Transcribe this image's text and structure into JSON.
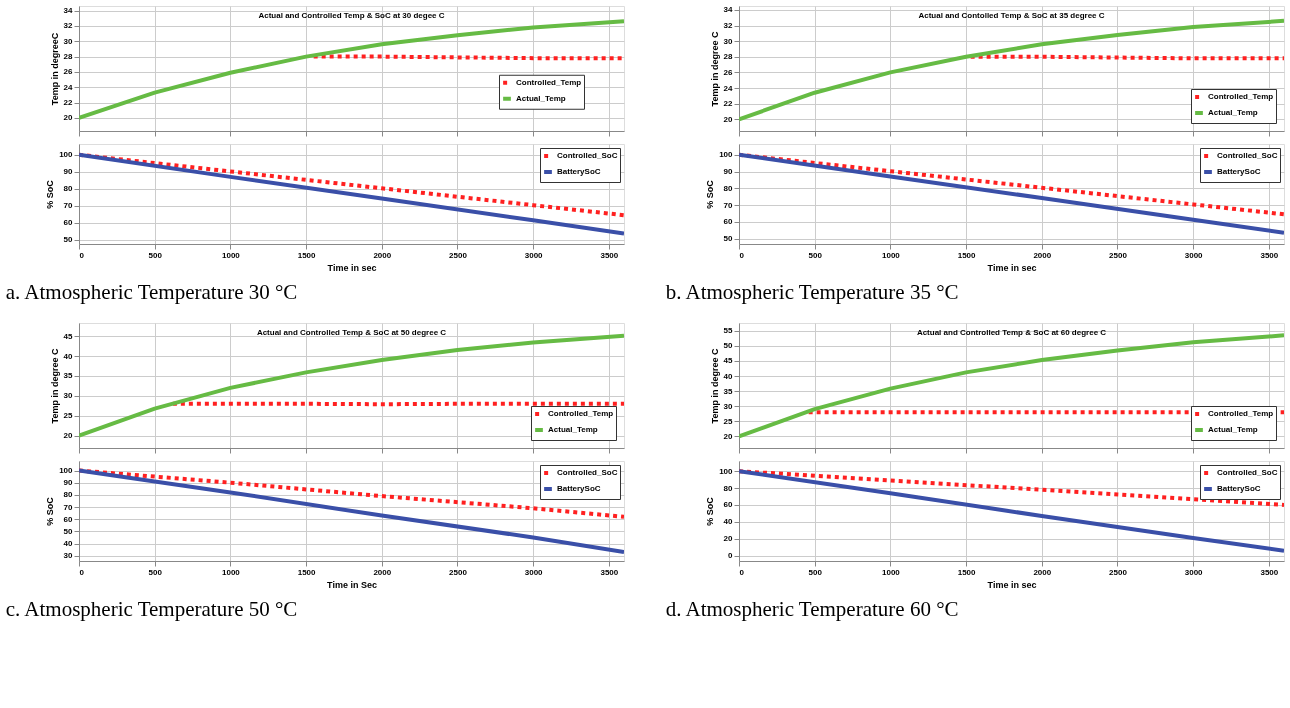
{
  "chart_data": [
    {
      "type": "line",
      "title": "Actual and Controlled Temp & SoC at 30 degee C",
      "ylabel": "Temp in degreeC",
      "xlim": [
        0,
        3600
      ],
      "xticks": [
        0,
        500,
        1000,
        1500,
        2000,
        2500,
        3000,
        3500
      ],
      "ylim": [
        18.3,
        34.6
      ],
      "yticks": [
        20,
        22,
        24,
        26,
        28,
        30,
        32,
        34
      ],
      "tick_labels": "y",
      "grid": true,
      "legend": "right",
      "marker": "none",
      "series": [
        {
          "name": "Controlled_Temp",
          "color": "#ff2020",
          "line_style": "dotted",
          "x": [
            1550,
            2000,
            2500,
            3000,
            3600
          ],
          "values": [
            28.0,
            28.0,
            27.9,
            27.8,
            27.8
          ]
        },
        {
          "name": "Actual_Temp",
          "color": "#66bb44",
          "line_style": "solid",
          "x": [
            0,
            500,
            1000,
            1500,
            2000,
            2500,
            3000,
            3600
          ],
          "values": [
            20,
            23.3,
            25.9,
            28,
            29.6,
            30.8,
            31.8,
            32.6
          ]
        }
      ]
    },
    {
      "type": "line",
      "xlabel": "Time in sec",
      "ylabel": "% SoC",
      "xlim": [
        0,
        3600
      ],
      "xticks": [
        0,
        500,
        1000,
        1500,
        2000,
        2500,
        3000,
        3500
      ],
      "ylim": [
        47.6,
        106.3
      ],
      "yticks": [
        50,
        60,
        70,
        80,
        90,
        100
      ],
      "grid": true,
      "legend": "top right",
      "marker": "none",
      "annotations": [
        "a. Atmospheric Temperature 30 °C"
      ],
      "series": [
        {
          "name": "Controlled_SoC",
          "color": "#ff2020",
          "line_style": "dotted",
          "x": [
            0,
            1000,
            2000,
            3000,
            3600
          ],
          "values": [
            100,
            90.2,
            80.3,
            70.4,
            64.5
          ]
        },
        {
          "name": "BatterySoC",
          "color": "#3a4fa8",
          "line_style": "solid",
          "x": [
            0,
            1000,
            2000,
            3000,
            3600
          ],
          "values": [
            100,
            87,
            74.3,
            61.5,
            53.7
          ]
        }
      ]
    },
    {
      "type": "line",
      "title": "Actual and Contolled Temp & SoC at 35 degree C",
      "ylabel": "Temp in degree C",
      "xlim": [
        0,
        3600
      ],
      "xticks": [
        0,
        500,
        1000,
        1500,
        2000,
        2500,
        3000,
        3500
      ],
      "ylim": [
        18.5,
        34.5
      ],
      "yticks": [
        20,
        22,
        24,
        26,
        28,
        30,
        32,
        34
      ],
      "tick_labels": "y",
      "grid": true,
      "legend": "bottom right",
      "marker": "none",
      "series": [
        {
          "name": "Controlled_Temp",
          "color": "#ff2020",
          "line_style": "dotted",
          "x": [
            1530,
            2000,
            2500,
            3000,
            3600
          ],
          "values": [
            28.0,
            28.0,
            27.9,
            27.8,
            27.8
          ]
        },
        {
          "name": "Actual_Temp",
          "color": "#66bb44",
          "line_style": "solid",
          "x": [
            0,
            500,
            1000,
            1500,
            2000,
            2500,
            3000,
            3600
          ],
          "values": [
            20,
            23.4,
            26,
            28,
            29.6,
            30.8,
            31.8,
            32.6
          ]
        }
      ]
    },
    {
      "type": "line",
      "xlabel": "Time in sec",
      "ylabel": "% SoC",
      "xlim": [
        0,
        3600
      ],
      "xticks": [
        0,
        500,
        1000,
        1500,
        2000,
        2500,
        3000,
        3500
      ],
      "ylim": [
        46.8,
        106.4
      ],
      "yticks": [
        50,
        60,
        70,
        80,
        90,
        100
      ],
      "grid": true,
      "legend": "top right",
      "marker": "none",
      "annotations": [
        "b. Atmospheric Temperature 35 °C"
      ],
      "series": [
        {
          "name": "Controlled_SoC",
          "color": "#ff2020",
          "line_style": "dotted",
          "x": [
            0,
            1000,
            2000,
            3000,
            3600
          ],
          "values": [
            100,
            90.2,
            80.3,
            70.4,
            64.5
          ]
        },
        {
          "name": "BatterySoC",
          "color": "#3a4fa8",
          "line_style": "solid",
          "x": [
            0,
            1000,
            2000,
            3000,
            3600
          ],
          "values": [
            100,
            87,
            74.2,
            61.3,
            53.5
          ]
        }
      ]
    },
    {
      "type": "line",
      "title": "Actual and Controlled Temp & SoC at 50 degree C",
      "ylabel": "Temp in degree C",
      "xlim": [
        0,
        3600
      ],
      "xticks": [
        0,
        500,
        1000,
        1500,
        2000,
        2500,
        3000,
        3500
      ],
      "ylim": [
        16.9,
        48.3
      ],
      "yticks": [
        20,
        25,
        30,
        35,
        40,
        45
      ],
      "tick_labels": "y",
      "grid": true,
      "legend": "bottom right",
      "marker": "none",
      "series": [
        {
          "name": "Controlled_Temp",
          "color": "#ff2020",
          "line_style": "dotted",
          "x": [
            620,
            1500,
            2000,
            2500,
            3000,
            3600
          ],
          "values": [
            28,
            28,
            27.9,
            28,
            28,
            28
          ]
        },
        {
          "name": "Actual_Temp",
          "color": "#66bb44",
          "line_style": "solid",
          "x": [
            0,
            500,
            1000,
            1500,
            2000,
            2500,
            3000,
            3600
          ],
          "values": [
            20,
            26.8,
            32,
            35.9,
            39,
            41.5,
            43.4,
            45.1
          ]
        }
      ]
    },
    {
      "type": "line",
      "xlabel": "Time in Sec",
      "ylabel": "% SoC",
      "xlim": [
        0,
        3600
      ],
      "xticks": [
        0,
        500,
        1000,
        1500,
        2000,
        2500,
        3000,
        3500
      ],
      "ylim": [
        25.7,
        107.8
      ],
      "yticks": [
        30,
        40,
        50,
        60,
        70,
        80,
        90,
        100
      ],
      "grid": true,
      "legend": "top right",
      "marker": "none",
      "annotations": [
        "c.  Atmospheric Temperature 50 °C"
      ],
      "series": [
        {
          "name": "Controlled_SoC",
          "color": "#ff2020",
          "line_style": "dotted",
          "x": [
            0,
            1000,
            2000,
            3000,
            3600
          ],
          "values": [
            100,
            90,
            79,
            69,
            62
          ]
        },
        {
          "name": "BatterySoC",
          "color": "#3a4fa8",
          "line_style": "solid",
          "x": [
            0,
            1000,
            2000,
            3000,
            3600
          ],
          "values": [
            100,
            82,
            63,
            45,
            33
          ]
        }
      ]
    },
    {
      "type": "line",
      "title": "Actual and Controlled Temp & SoC at 60 degree C",
      "ylabel": "Temp in degree C",
      "xlim": [
        0,
        3600
      ],
      "xticks": [
        0,
        500,
        1000,
        1500,
        2000,
        2500,
        3000,
        3500
      ],
      "ylim": [
        16.1,
        57.6
      ],
      "yticks": [
        20,
        25,
        30,
        35,
        40,
        45,
        50,
        55
      ],
      "tick_labels": "y",
      "grid": true,
      "legend": "bottom right",
      "marker": "none",
      "series": [
        {
          "name": "Controlled_Temp",
          "color": "#ff2020",
          "line_style": "dotted",
          "x": [
            460,
            1500,
            2500,
            3600
          ],
          "values": [
            28,
            28,
            28,
            28
          ]
        },
        {
          "name": "Actual_Temp",
          "color": "#66bb44",
          "line_style": "solid",
          "x": [
            0,
            500,
            1000,
            1500,
            2000,
            2500,
            3000,
            3600
          ],
          "values": [
            20,
            29,
            35.8,
            41.2,
            45.3,
            48.5,
            51.2,
            53.5
          ]
        }
      ]
    },
    {
      "type": "line",
      "xlabel": "Time in sec",
      "ylabel": "% SoC",
      "xlim": [
        0,
        3600
      ],
      "xticks": [
        0,
        500,
        1000,
        1500,
        2000,
        2500,
        3000,
        3500
      ],
      "ylim": [
        -6.2,
        112
      ],
      "yticks": [
        0,
        20,
        40,
        60,
        80,
        100
      ],
      "grid": true,
      "legend": "top right",
      "marker": "none",
      "annotations": [
        "d. Atmospheric Temperature 60 °C"
      ],
      "series": [
        {
          "name": "Controlled_SoC",
          "color": "#ff2020",
          "line_style": "dotted",
          "x": [
            0,
            1000,
            2000,
            3000,
            3600
          ],
          "values": [
            100,
            89,
            78,
            67,
            60
          ]
        },
        {
          "name": "BatterySoC",
          "color": "#3a4fa8",
          "line_style": "solid",
          "x": [
            0,
            1000,
            2000,
            3000,
            3600
          ],
          "values": [
            100,
            74,
            47,
            21,
            6
          ]
        }
      ]
    }
  ]
}
